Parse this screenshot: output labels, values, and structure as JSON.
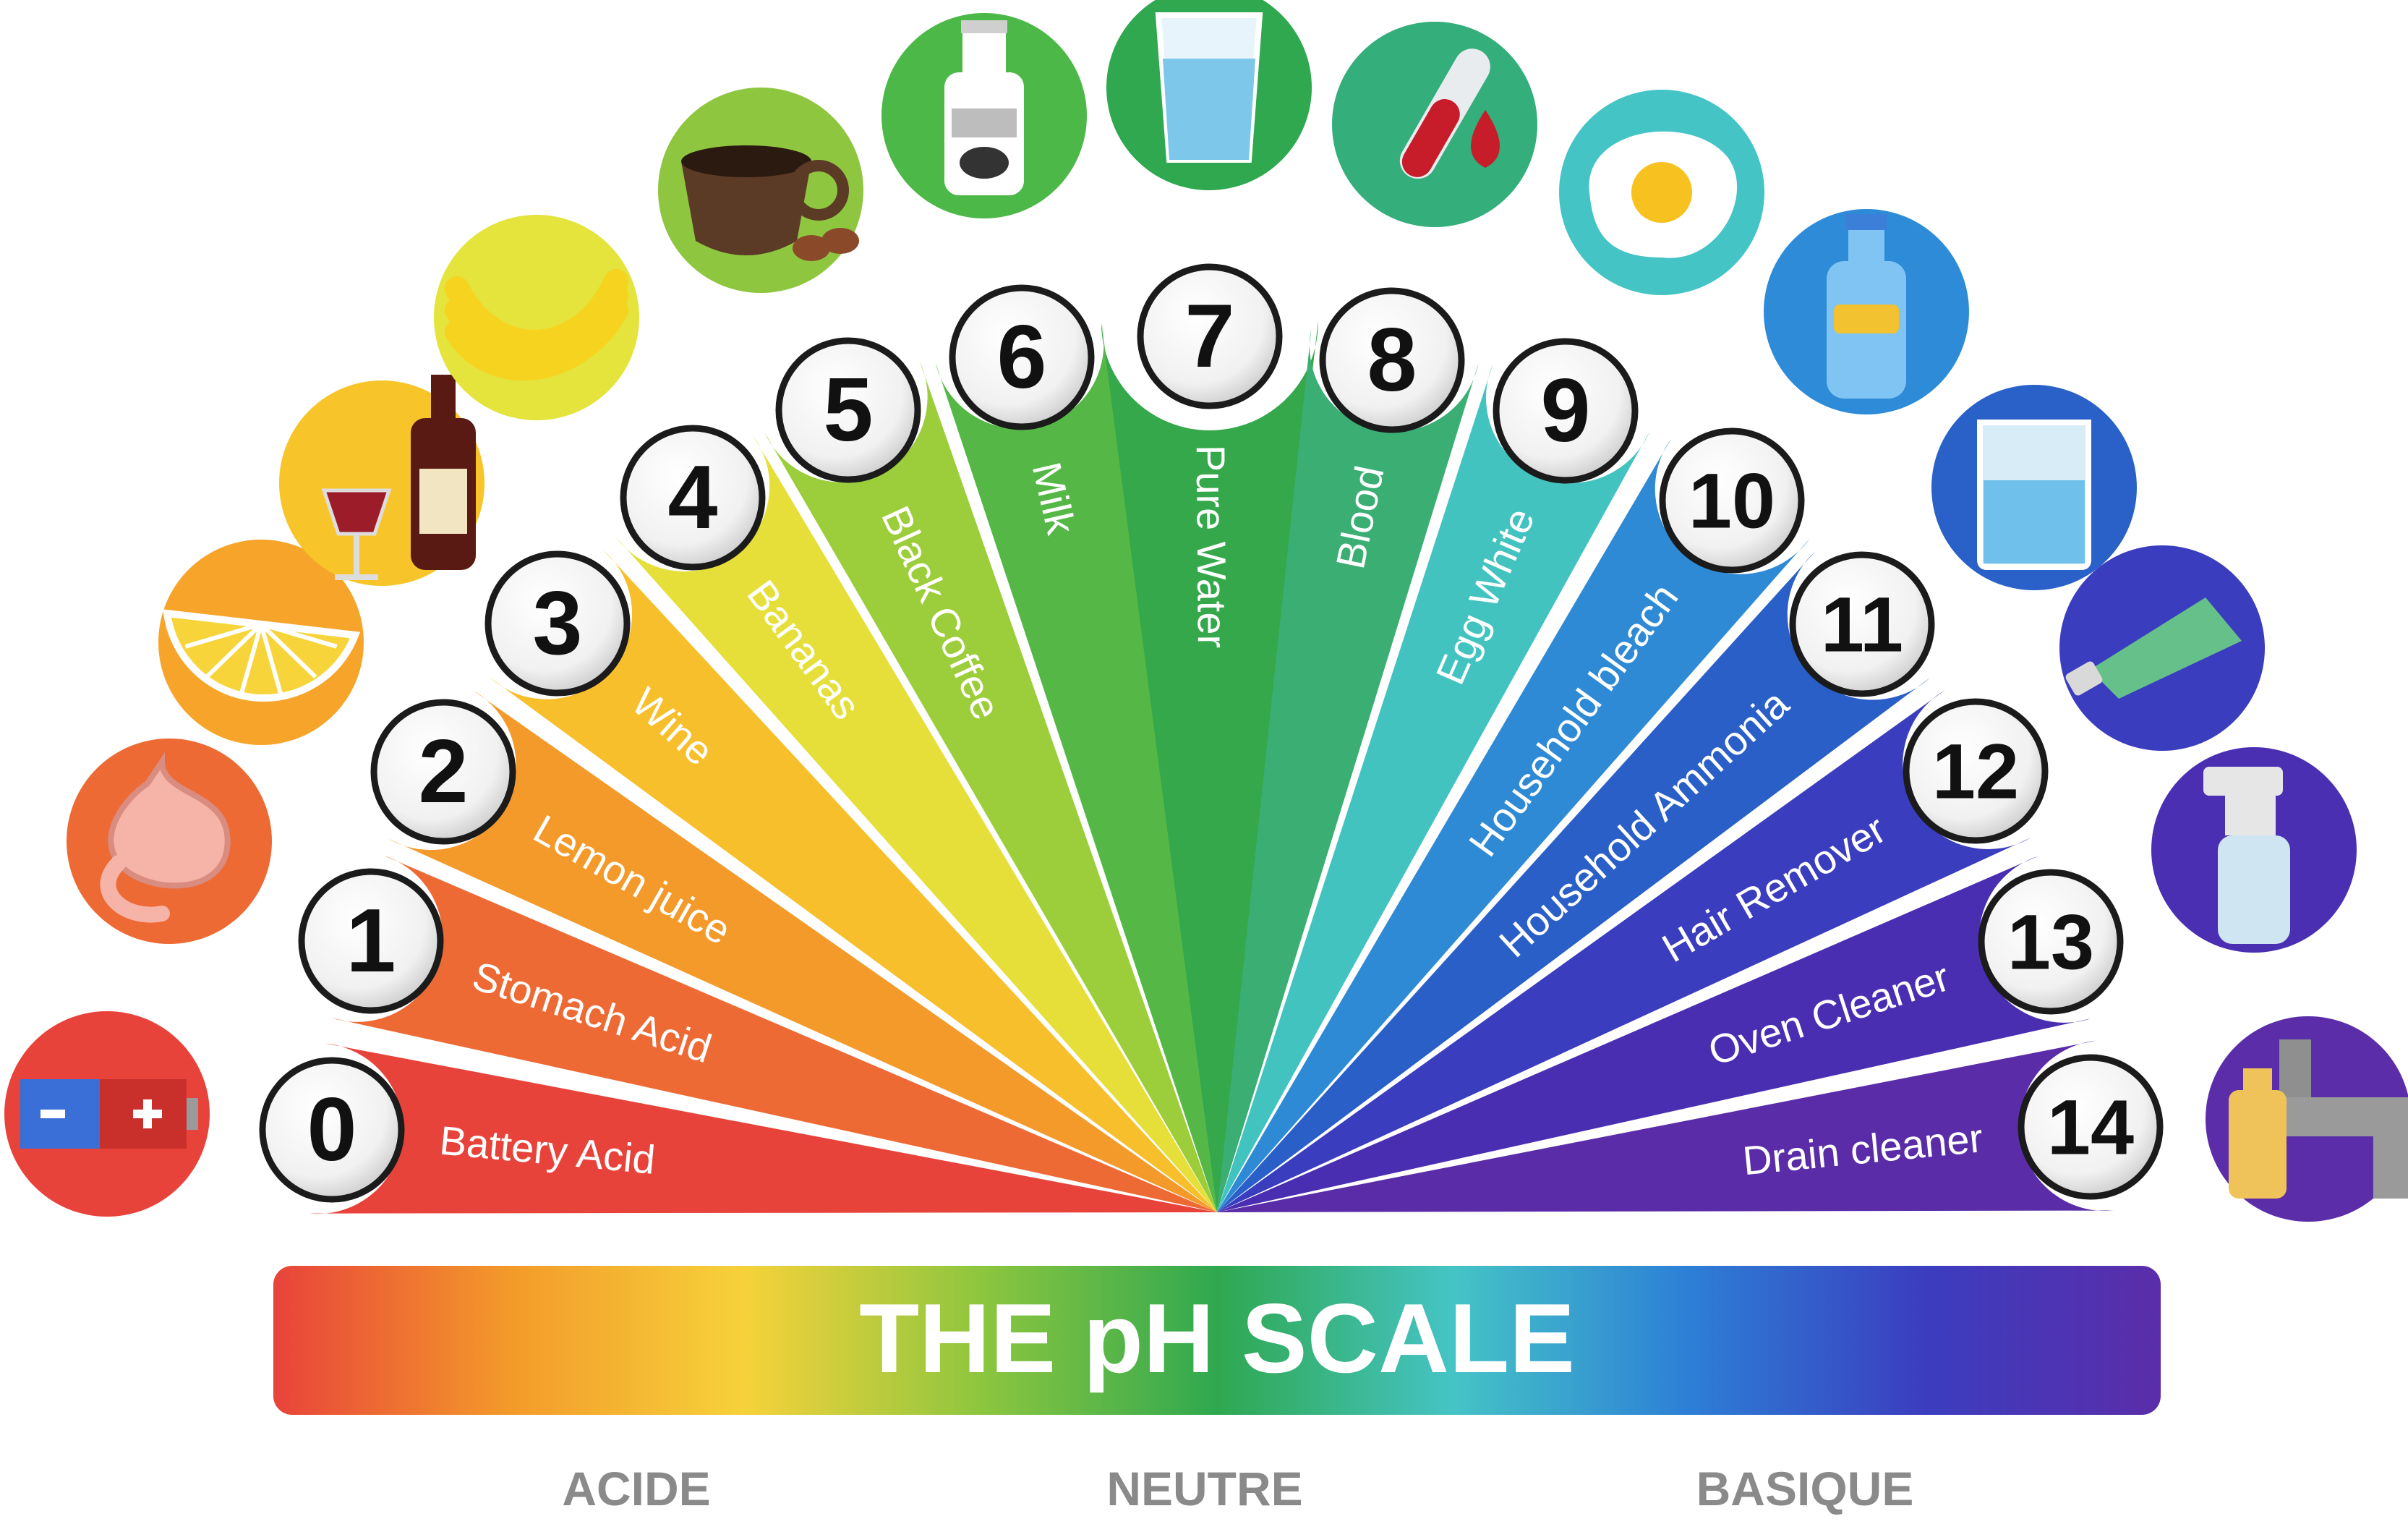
{
  "title": "THE pH SCALE",
  "categories": [
    {
      "id": "acid",
      "label": "ACIDE"
    },
    {
      "id": "neutral",
      "label": "NEUTRE"
    },
    {
      "id": "base",
      "label": "BASIQUE"
    }
  ],
  "levels": [
    {
      "ph": "0",
      "label": "Battery Acid",
      "color": "#e8433a",
      "icon": "battery-icon",
      "icon_color": "#e8433a"
    },
    {
      "ph": "1",
      "label": "Stomach Acid",
      "color": "#ee6a35",
      "icon": "stomach-icon",
      "icon_color": "#ee6a35"
    },
    {
      "ph": "2",
      "label": "Lemon juice",
      "color": "#f39a2a",
      "icon": "lemon-icon",
      "icon_color": "#f7a52a"
    },
    {
      "ph": "3",
      "label": "Wine",
      "color": "#f6bf2b",
      "icon": "wine-icon",
      "icon_color": "#f7c52a"
    },
    {
      "ph": "4",
      "label": "Bananas",
      "color": "#e6df3a",
      "icon": "banana-icon",
      "icon_color": "#e4e43c"
    },
    {
      "ph": "5",
      "label": "Black Coffee",
      "color": "#9ccd3a",
      "icon": "coffee-icon",
      "icon_color": "#8ec63f"
    },
    {
      "ph": "6",
      "label": "Milk",
      "color": "#55b846",
      "icon": "milk-bottle-icon",
      "icon_color": "#4cb848"
    },
    {
      "ph": "7",
      "label": "Pure Water",
      "color": "#34a84a",
      "icon": "water-glass-icon",
      "icon_color": "#2fa84f"
    },
    {
      "ph": "8",
      "label": "Blood",
      "color": "#3aae73",
      "icon": "blood-tube-icon",
      "icon_color": "#34ae7a"
    },
    {
      "ph": "9",
      "label": "Egg White",
      "color": "#43c3c0",
      "icon": "egg-icon",
      "icon_color": "#45c4c6"
    },
    {
      "ph": "10",
      "label": "Household bleach",
      "color": "#2f8ad6",
      "icon": "bleach-bottle-icon",
      "icon_color": "#2d8bd8"
    },
    {
      "ph": "11",
      "label": "Household Ammonia",
      "color": "#2a5fc8",
      "icon": "beaker-icon",
      "icon_color": "#2a61c8"
    },
    {
      "ph": "12",
      "label": "Hair Remover",
      "color": "#3a3dbd",
      "icon": "cream-tube-icon",
      "icon_color": "#3b3dbf"
    },
    {
      "ph": "13",
      "label": "Oven Cleaner",
      "color": "#4a2eb2",
      "icon": "spray-bottle-icon",
      "icon_color": "#4b2fb3"
    },
    {
      "ph": "14",
      "label": "Drain cleaner",
      "color": "#5a2ca8",
      "icon": "drain-pipe-icon",
      "icon_color": "#5b2da9"
    }
  ],
  "gradient_colors": [
    "#e8433a",
    "#f39a2a",
    "#f6d23a",
    "#8dc63f",
    "#2fa84f",
    "#45c4c6",
    "#2d7fd6",
    "#3b3dbf",
    "#5b2da9"
  ]
}
